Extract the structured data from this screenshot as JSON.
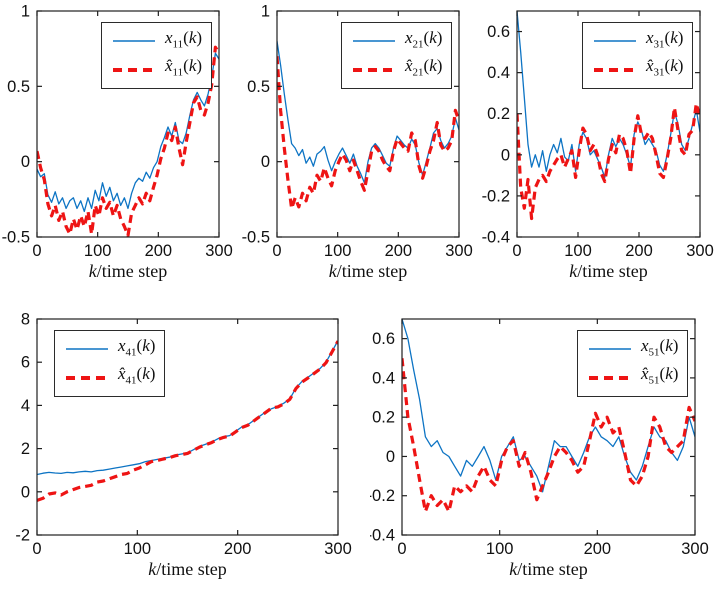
{
  "figure": {
    "background": "#ffffff",
    "frame_color": "#1f1f1f",
    "tick_label_color": "#111111"
  },
  "legend_arg": {
    "open": "(",
    "arg": "k",
    "close": ")"
  },
  "axis_label": {
    "it": "k",
    "rest": "/time step"
  },
  "chart_k": [
    0,
    6,
    12,
    18,
    24,
    30,
    36,
    42,
    48,
    54,
    60,
    66,
    72,
    78,
    84,
    90,
    96,
    102,
    108,
    114,
    120,
    126,
    132,
    138,
    144,
    150,
    156,
    162,
    168,
    174,
    180,
    186,
    192,
    198,
    204,
    210,
    216,
    222,
    228,
    234,
    240,
    246,
    252,
    258,
    264,
    270,
    276,
    282,
    288,
    294,
    300
  ],
  "chart_data": [
    {
      "type": "line",
      "xlabel": "k/time step",
      "xlim": [
        0,
        300
      ],
      "ylim": [
        -0.5,
        1
      ],
      "xticks": [
        0,
        100,
        200,
        300
      ],
      "xtick_labels": [
        "0",
        "100",
        "200",
        "300"
      ],
      "yticks": [
        -0.5,
        0,
        0.5,
        1
      ],
      "ytick_labels": [
        "-0.5",
        "0",
        "0.5",
        "1"
      ],
      "legend_pos": "ne",
      "grid": false,
      "series": [
        {
          "name": "x_11(k)",
          "var": "x",
          "sub": "11",
          "color": "#0d74c4",
          "style": "solid",
          "values": [
            -0.05,
            -0.1,
            -0.08,
            -0.22,
            -0.27,
            -0.2,
            -0.28,
            -0.24,
            -0.31,
            -0.26,
            -0.24,
            -0.31,
            -0.26,
            -0.33,
            -0.24,
            -0.31,
            -0.19,
            -0.26,
            -0.14,
            -0.23,
            -0.17,
            -0.26,
            -0.21,
            -0.29,
            -0.24,
            -0.31,
            -0.21,
            -0.14,
            -0.11,
            -0.13,
            -0.07,
            -0.11,
            -0.04,
            0.0,
            0.1,
            0.16,
            0.23,
            0.17,
            0.26,
            0.14,
            0.12,
            0.19,
            0.31,
            0.41,
            0.46,
            0.41,
            0.37,
            0.45,
            0.56,
            0.72,
            0.68
          ]
        },
        {
          "name": "x̂_11(k)",
          "var": "x̂",
          "sub": "11",
          "color": "#ee1414",
          "style": "dashed",
          "values": [
            0.07,
            -0.04,
            -0.12,
            -0.28,
            -0.36,
            -0.29,
            -0.39,
            -0.33,
            -0.43,
            -0.48,
            -0.38,
            -0.45,
            -0.36,
            -0.43,
            -0.33,
            -0.48,
            -0.29,
            -0.36,
            -0.24,
            -0.31,
            -0.27,
            -0.36,
            -0.29,
            -0.38,
            -0.43,
            -0.49,
            -0.34,
            -0.29,
            -0.24,
            -0.28,
            -0.21,
            -0.26,
            -0.17,
            -0.09,
            0.02,
            0.09,
            0.19,
            0.14,
            0.23,
            0.09,
            -0.02,
            0.13,
            0.26,
            0.39,
            0.43,
            0.34,
            0.31,
            0.39,
            0.51,
            0.76,
            0.72
          ]
        }
      ]
    },
    {
      "type": "line",
      "xlabel": "k/time step",
      "xlim": [
        0,
        300
      ],
      "ylim": [
        -0.5,
        1
      ],
      "xticks": [
        0,
        100,
        200,
        300
      ],
      "xtick_labels": [
        "0",
        "100",
        "200",
        "300"
      ],
      "yticks": [
        -0.5,
        0,
        0.5,
        1
      ],
      "ytick_labels": [
        "-0.5",
        "0",
        "0.5",
        "1"
      ],
      "legend_pos": "ne",
      "grid": false,
      "series": [
        {
          "name": "x_21(k)",
          "var": "x",
          "sub": "21",
          "color": "#0d74c4",
          "style": "solid",
          "values": [
            0.8,
            0.64,
            0.45,
            0.28,
            0.12,
            0.09,
            0.04,
            0.08,
            -0.01,
            0.03,
            -0.03,
            0.05,
            0.07,
            0.1,
            0.01,
            -0.06,
            0.0,
            0.05,
            0.09,
            0.04,
            -0.01,
            0.05,
            -0.03,
            -0.08,
            -0.14,
            0.0,
            0.09,
            0.12,
            0.09,
            0.04,
            -0.01,
            -0.03,
            0.09,
            0.17,
            0.14,
            0.11,
            0.09,
            0.15,
            0.11,
            -0.01,
            -0.09,
            0.0,
            0.09,
            0.19,
            0.22,
            0.14,
            0.09,
            0.12,
            0.17,
            0.29,
            0.21
          ]
        },
        {
          "name": "x̂_21(k)",
          "var": "x̂",
          "sub": "21",
          "color": "#ee1414",
          "style": "dashed",
          "values": [
            0.7,
            0.34,
            0.09,
            -0.12,
            -0.31,
            -0.24,
            -0.3,
            -0.21,
            -0.26,
            -0.17,
            -0.21,
            -0.09,
            -0.13,
            -0.04,
            -0.11,
            -0.16,
            -0.06,
            0.0,
            0.05,
            0.01,
            -0.06,
            0.01,
            -0.06,
            -0.13,
            -0.19,
            -0.06,
            0.07,
            0.1,
            0.07,
            0.01,
            -0.03,
            -0.06,
            0.07,
            0.15,
            0.12,
            0.09,
            0.07,
            0.19,
            0.14,
            -0.03,
            -0.11,
            -0.03,
            0.07,
            0.14,
            0.26,
            0.11,
            0.07,
            0.09,
            0.14,
            0.34,
            0.27
          ]
        }
      ]
    },
    {
      "type": "line",
      "xlabel": "k/time step",
      "xlim": [
        0,
        300
      ],
      "ylim": [
        -0.4,
        0.7
      ],
      "xticks": [
        0,
        100,
        200,
        300
      ],
      "xtick_labels": [
        "0",
        "100",
        "200",
        "300"
      ],
      "yticks": [
        -0.4,
        -0.2,
        0,
        0.2,
        0.4,
        0.6
      ],
      "ytick_labels": [
        "-0.4",
        "-0.2",
        "0",
        "0.2",
        "0.4",
        "0.6"
      ],
      "legend_pos": "ne",
      "grid": false,
      "series": [
        {
          "name": "x_31(k)",
          "var": "x",
          "sub": "31",
          "color": "#0d74c4",
          "style": "solid",
          "values": [
            0.7,
            0.5,
            0.28,
            0.05,
            -0.06,
            0.0,
            -0.06,
            0.02,
            -0.08,
            0.0,
            0.05,
            0.01,
            0.08,
            -0.01,
            -0.03,
            0.05,
            -0.08,
            0.05,
            0.11,
            0.08,
            0.0,
            0.02,
            -0.02,
            -0.06,
            -0.11,
            0.0,
            0.08,
            0.04,
            0.08,
            0.05,
            0.0,
            -0.06,
            0.1,
            0.16,
            0.12,
            0.05,
            0.08,
            0.05,
            0.02,
            -0.05,
            -0.08,
            0.0,
            0.1,
            0.21,
            0.15,
            0.05,
            0.02,
            0.08,
            0.15,
            0.22,
            0.11
          ]
        },
        {
          "name": "x̂_31(k)",
          "var": "x̂",
          "sub": "31",
          "color": "#ee1414",
          "style": "dashed",
          "values": [
            0.2,
            -0.16,
            -0.26,
            -0.12,
            -0.31,
            -0.16,
            -0.12,
            -0.1,
            -0.13,
            -0.08,
            -0.05,
            -0.02,
            0.0,
            -0.06,
            -0.02,
            0.02,
            -0.11,
            0.02,
            0.13,
            0.1,
            0.02,
            0.05,
            0.0,
            -0.09,
            -0.13,
            -0.02,
            0.05,
            0.01,
            0.1,
            0.08,
            0.02,
            -0.09,
            0.08,
            0.19,
            0.1,
            0.08,
            0.11,
            0.08,
            0.0,
            -0.09,
            -0.11,
            -0.02,
            0.08,
            0.23,
            0.12,
            0.02,
            0.0,
            0.1,
            0.12,
            0.25,
            0.18
          ]
        }
      ]
    },
    {
      "type": "line",
      "xlabel": "k/time step",
      "xlim": [
        0,
        300
      ],
      "ylim": [
        -2,
        8
      ],
      "xticks": [
        0,
        100,
        200,
        300
      ],
      "xtick_labels": [
        "0",
        "100",
        "200",
        "300"
      ],
      "yticks": [
        -2,
        0,
        2,
        4,
        6,
        8
      ],
      "ytick_labels": [
        "-2",
        "0",
        "2",
        "4",
        "6",
        "8"
      ],
      "legend_pos": "nw",
      "grid": false,
      "series": [
        {
          "name": "x_41(k)",
          "var": "x",
          "sub": "41",
          "color": "#0d74c4",
          "style": "solid",
          "values": [
            0.8,
            0.86,
            0.9,
            0.87,
            0.85,
            0.9,
            0.88,
            0.92,
            0.95,
            0.92,
            0.98,
            1.0,
            1.05,
            1.1,
            1.15,
            1.2,
            1.25,
            1.3,
            1.4,
            1.45,
            1.5,
            1.55,
            1.6,
            1.7,
            1.75,
            1.8,
            1.95,
            2.1,
            2.2,
            2.3,
            2.45,
            2.55,
            2.6,
            2.8,
            3.0,
            3.1,
            3.3,
            3.5,
            3.7,
            3.85,
            3.95,
            4.1,
            4.3,
            4.8,
            5.1,
            5.3,
            5.5,
            5.7,
            6.0,
            6.5,
            7.0
          ]
        },
        {
          "name": "x̂_41(k)",
          "var": "x̂",
          "sub": "41",
          "color": "#ee1414",
          "style": "dashed",
          "values": [
            -0.4,
            -0.3,
            -0.1,
            -0.05,
            -0.15,
            0.0,
            0.1,
            0.2,
            0.25,
            0.3,
            0.45,
            0.5,
            0.6,
            0.7,
            0.8,
            0.85,
            1.0,
            1.1,
            1.25,
            1.4,
            1.45,
            1.52,
            1.58,
            1.67,
            1.72,
            1.78,
            1.92,
            2.07,
            2.18,
            2.28,
            2.42,
            2.52,
            2.58,
            2.78,
            2.97,
            3.08,
            3.28,
            3.48,
            3.68,
            3.88,
            3.93,
            4.07,
            4.28,
            4.78,
            5.08,
            5.27,
            5.47,
            5.68,
            5.97,
            6.47,
            6.97
          ]
        }
      ]
    },
    {
      "type": "line",
      "xlabel": "k/time step",
      "xlim": [
        0,
        300
      ],
      "ylim": [
        -0.4,
        0.7
      ],
      "xticks": [
        0,
        100,
        200,
        300
      ],
      "xtick_labels": [
        "0",
        "100",
        "200",
        "300"
      ],
      "yticks": [
        -0.4,
        -0.2,
        0,
        0.2,
        0.4,
        0.6
      ],
      "ytick_labels": [
        "-0.4",
        "-0.2",
        "0",
        "0.2",
        "0.4",
        "0.6"
      ],
      "legend_pos": "ne",
      "grid": false,
      "series": [
        {
          "name": "x_51(k)",
          "var": "x",
          "sub": "51",
          "color": "#0d74c4",
          "style": "solid",
          "values": [
            0.7,
            0.6,
            0.44,
            0.29,
            0.1,
            0.05,
            0.08,
            0.02,
            0.0,
            -0.05,
            -0.1,
            -0.02,
            -0.05,
            0.0,
            0.05,
            -0.02,
            -0.12,
            0.0,
            0.05,
            0.1,
            -0.02,
            0.0,
            -0.05,
            -0.1,
            -0.18,
            -0.05,
            0.08,
            0.05,
            0.05,
            0.0,
            -0.05,
            0.02,
            0.1,
            0.15,
            0.1,
            0.08,
            0.05,
            0.1,
            0.0,
            -0.08,
            -0.12,
            -0.05,
            0.05,
            0.15,
            0.1,
            0.08,
            0.02,
            -0.02,
            0.05,
            0.2,
            0.1
          ]
        },
        {
          "name": "x̂_51(k)",
          "var": "x̂",
          "sub": "51",
          "color": "#ee1414",
          "style": "dashed",
          "values": [
            0.5,
            0.2,
            0.05,
            -0.12,
            -0.28,
            -0.2,
            -0.25,
            -0.22,
            -0.28,
            -0.15,
            -0.18,
            -0.15,
            -0.18,
            -0.1,
            -0.05,
            -0.12,
            -0.15,
            -0.02,
            0.05,
            0.08,
            -0.05,
            0.02,
            -0.08,
            -0.22,
            -0.15,
            -0.08,
            0.0,
            0.05,
            0.02,
            -0.02,
            -0.08,
            -0.05,
            0.08,
            0.22,
            0.15,
            0.2,
            0.12,
            0.15,
            0.02,
            -0.12,
            -0.15,
            -0.1,
            0.0,
            0.2,
            0.15,
            0.05,
            0.02,
            0.05,
            0.08,
            0.25,
            0.18
          ]
        }
      ]
    }
  ]
}
